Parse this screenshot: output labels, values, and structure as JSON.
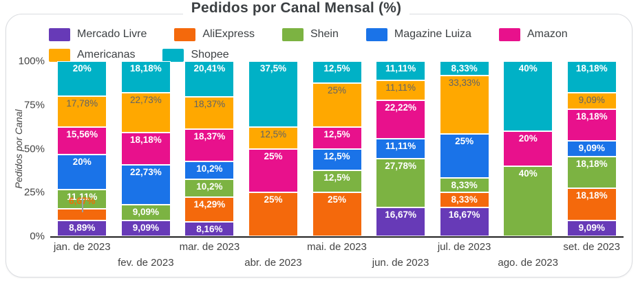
{
  "title": "Pedidos por Canal Mensal (%)",
  "legend": {
    "rows": [
      [
        {
          "label": "Mercado Livre",
          "color": "#673AB7"
        },
        {
          "label": "AliExpress",
          "color": "#F4690C"
        },
        {
          "label": "Shein",
          "color": "#7CB342"
        },
        {
          "label": "Magazine Luiza",
          "color": "#1A73E8"
        },
        {
          "label": "Amazon",
          "color": "#E8118C"
        }
      ],
      [
        {
          "label": "Americanas",
          "color": "#FFA800"
        },
        {
          "label": "Shopee",
          "color": "#00B1C6"
        }
      ]
    ]
  },
  "chart_data": {
    "type": "bar",
    "stacked": true,
    "percent": true,
    "title": "Pedidos por Canal Mensal (%)",
    "ylabel": "Pedidos por Canal",
    "xlabel": "",
    "ylim": [
      0,
      100
    ],
    "grid": false,
    "legend_position": "top",
    "y_ticks": [
      "0%",
      "25%",
      "50%",
      "75%",
      "100%"
    ],
    "categories": [
      "jan. de 2023",
      "fev. de 2023",
      "mar. de 2023",
      "abr. de 2023",
      "mai. de 2023",
      "jun. de 2023",
      "jul. de 2023",
      "ago. de 2023",
      "set. de 2023"
    ],
    "series": [
      {
        "name": "Mercado Livre",
        "color": "#673AB7",
        "values": [
          8.89,
          9.09,
          8.16,
          0,
          0,
          16.67,
          16.67,
          0,
          9.09
        ],
        "labels": [
          "8,89%",
          "9,09%",
          "8,16%",
          "",
          "",
          "16,67%",
          "16,67%",
          "",
          "9,09%"
        ]
      },
      {
        "name": "AliExpress",
        "color": "#F4690C",
        "values": [
          6.67,
          0,
          14.29,
          25,
          25,
          0,
          8.33,
          0,
          18.18
        ],
        "labels": [
          "6,67%",
          "",
          "14,29%",
          "25%",
          "25%",
          "",
          "8,33%",
          "",
          "18,18%"
        ],
        "outside_label_indices": [
          0
        ]
      },
      {
        "name": "Shein",
        "color": "#7CB342",
        "values": [
          11.11,
          9.09,
          10.2,
          0,
          12.5,
          27.78,
          8.33,
          40,
          18.18
        ],
        "labels": [
          "11,11%",
          "9,09%",
          "10,2%",
          "",
          "12,5%",
          "27,78%",
          "8,33%",
          "40%",
          "18,18%"
        ]
      },
      {
        "name": "Magazine Luiza",
        "color": "#1A73E8",
        "values": [
          20,
          22.73,
          10.2,
          0,
          12.5,
          11.11,
          25,
          0,
          9.09
        ],
        "labels": [
          "20%",
          "22,73%",
          "10,2%",
          "",
          "12,5%",
          "11,11%",
          "25%",
          "",
          "9,09%"
        ]
      },
      {
        "name": "Amazon",
        "color": "#E8118C",
        "values": [
          15.56,
          18.18,
          18.37,
          25,
          12.5,
          22.22,
          0,
          20,
          18.18
        ],
        "labels": [
          "15,56%",
          "18,18%",
          "18,37%",
          "25%",
          "12,5%",
          "22,22%",
          "",
          "20%",
          "18,18%"
        ]
      },
      {
        "name": "Americanas",
        "color": "#FFA800",
        "label_dark": true,
        "values": [
          17.78,
          22.73,
          18.37,
          12.5,
          25,
          11.11,
          33.33,
          0,
          9.09
        ],
        "labels": [
          "17,78%",
          "22,73%",
          "18,37%",
          "12,5%",
          "25%",
          "11,11%",
          "33,33%",
          "",
          "9,09%"
        ]
      },
      {
        "name": "Shopee",
        "color": "#00B1C6",
        "values": [
          20,
          18.18,
          20.41,
          37.5,
          12.5,
          11.11,
          8.33,
          40,
          18.18
        ],
        "labels": [
          "20%",
          "18,18%",
          "20,41%",
          "37,5%",
          "12,5%",
          "11,11%",
          "8,33%",
          "40%",
          "18,18%"
        ]
      }
    ],
    "outside_label_color": "#E8710A",
    "leader_line_color": "#9AA0A6",
    "axis_line_color": "#212121",
    "label_dark_color": "#5F6368"
  }
}
